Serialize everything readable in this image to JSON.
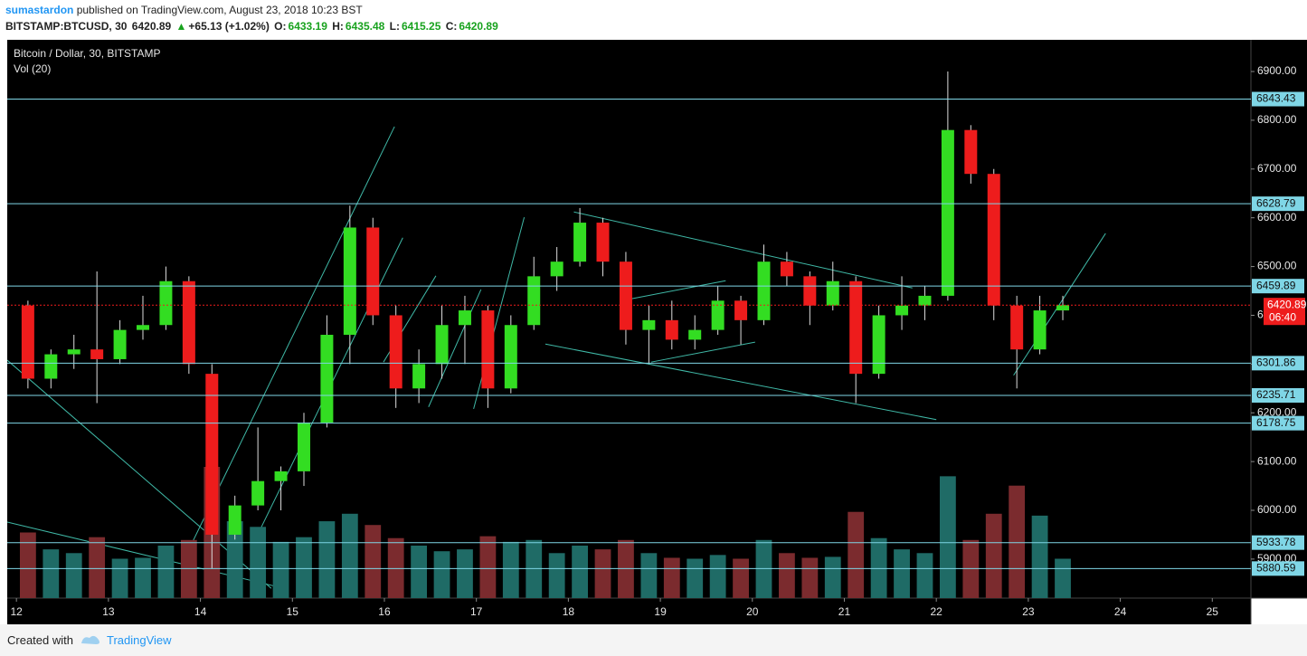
{
  "header": {
    "user": "sumastardon",
    "published": "published on TradingView.com, August 23, 2018 10:23 BST",
    "symbol": "BITSTAMP:BTCUSD, 30",
    "last": "6420.89",
    "change": "+65.13 (+1.02%)",
    "o_label": "O:",
    "o": "6433.19",
    "h_label": "H:",
    "h": "6435.48",
    "l_label": "L:",
    "l": "6415.25",
    "c_label": "C:",
    "c": "6420.89"
  },
  "footer": {
    "created": "Created with",
    "brand": "TradingView"
  },
  "chart_data": {
    "type": "candlestick",
    "title": "Bitcoin / Dollar, 30, BITSTAMP",
    "volume_label": "Vol (20)",
    "up_color": "#33dd22",
    "down_color": "#ee1c1c",
    "wick_color": "#dddddd",
    "up_volume_color": "#1f6b66",
    "down_volume_color": "#7b2b2e",
    "line_color": "#3fb8a6",
    "level_color": "#7fd6e6",
    "x": [
      12,
      12.25,
      12.5,
      12.75,
      13,
      13.25,
      13.5,
      13.75,
      14,
      14.25,
      14.5,
      14.75,
      15,
      15.25,
      15.5,
      15.75,
      16,
      16.25,
      16.5,
      16.75,
      17,
      17.25,
      17.5,
      17.75,
      18,
      18.25,
      18.5,
      18.75,
      19,
      19.25,
      19.5,
      19.75,
      20,
      20.25,
      20.5,
      20.75,
      21,
      21.25,
      21.5,
      21.75,
      22,
      22.25,
      22.5,
      22.75,
      23,
      23.25
    ],
    "open": [
      6420,
      6270,
      6320,
      6330,
      6310,
      6370,
      6380,
      6470,
      6280,
      5950,
      6010,
      6060,
      6080,
      6180,
      6360,
      6580,
      6400,
      6250,
      6300,
      6380,
      6410,
      6250,
      6380,
      6480,
      6510,
      6590,
      6510,
      6370,
      6390,
      6350,
      6370,
      6430,
      6390,
      6510,
      6480,
      6420,
      6470,
      6280,
      6400,
      6420,
      6440,
      6780,
      6690,
      6420,
      6330,
      6410
    ],
    "high": [
      6430,
      6330,
      6360,
      6490,
      6390,
      6440,
      6500,
      6480,
      6300,
      6030,
      6170,
      6090,
      6200,
      6400,
      6625,
      6600,
      6420,
      6330,
      6420,
      6440,
      6420,
      6400,
      6520,
      6540,
      6620,
      6600,
      6530,
      6420,
      6430,
      6400,
      6460,
      6440,
      6545,
      6530,
      6490,
      6510,
      6480,
      6420,
      6480,
      6460,
      6900,
      6790,
      6700,
      6440,
      6440,
      6440
    ],
    "low": [
      6250,
      6250,
      6290,
      6220,
      6300,
      6350,
      6370,
      6280,
      5880,
      5940,
      6000,
      6000,
      6050,
      6170,
      6300,
      6380,
      6210,
      6220,
      6270,
      6300,
      6210,
      6240,
      6370,
      6450,
      6500,
      6480,
      6340,
      6300,
      6330,
      6330,
      6360,
      6340,
      6380,
      6460,
      6380,
      6410,
      6220,
      6270,
      6370,
      6390,
      6430,
      6670,
      6390,
      6250,
      6320,
      6390
    ],
    "close": [
      6270,
      6320,
      6330,
      6310,
      6370,
      6380,
      6470,
      6300,
      5950,
      6010,
      6060,
      6080,
      6180,
      6360,
      6580,
      6400,
      6250,
      6300,
      6380,
      6410,
      6250,
      6380,
      6480,
      6510,
      6590,
      6510,
      6370,
      6390,
      6350,
      6370,
      6430,
      6390,
      6510,
      6480,
      6420,
      6470,
      6280,
      6400,
      6420,
      6440,
      6780,
      6690,
      6420,
      6330,
      6410,
      6420.89
    ],
    "volume": [
      700,
      520,
      480,
      650,
      420,
      430,
      560,
      620,
      1400,
      820,
      760,
      600,
      650,
      820,
      900,
      780,
      640,
      560,
      500,
      520,
      660,
      600,
      620,
      480,
      560,
      520,
      620,
      480,
      430,
      420,
      460,
      420,
      620,
      480,
      430,
      440,
      920,
      640,
      520,
      480,
      1300,
      620,
      900,
      1200,
      880,
      420
    ],
    "ylim": [
      5820,
      6965
    ],
    "xlim": [
      11.9,
      25.42
    ],
    "yticks": [
      {
        "value": 5900,
        "label": "5900.00"
      },
      {
        "value": 6000,
        "label": "6000.00"
      },
      {
        "value": 6100,
        "label": "6100.00"
      },
      {
        "value": 6200,
        "label": "6200.00"
      },
      {
        "value": 6300,
        "label": "6300.00"
      },
      {
        "value": 6400,
        "label": "6400.00"
      },
      {
        "value": 6500,
        "label": "6500.00"
      },
      {
        "value": 6600,
        "label": "6600.00"
      },
      {
        "value": 6700,
        "label": "6700.00"
      },
      {
        "value": 6800,
        "label": "6800.00"
      },
      {
        "value": 6900,
        "label": "6900.00"
      }
    ],
    "xticks": [
      12,
      13,
      14,
      15,
      16,
      17,
      18,
      19,
      20,
      21,
      22,
      23,
      24,
      25
    ],
    "levels": [
      6843.43,
      6628.79,
      6459.89,
      6301.86,
      6235.71,
      6178.75,
      5933.78,
      5880.59
    ],
    "last_price": 6420.89,
    "countdown": "06:40",
    "trendlines": [
      [
        13.87,
        5918,
        16.11,
        6787
      ],
      [
        14.64,
        5957,
        16.2,
        6559
      ],
      [
        18.06,
        6612,
        21.74,
        6456
      ],
      [
        17.75,
        6341,
        22.0,
        6186
      ],
      [
        22.84,
        6277,
        23.84,
        6568
      ],
      [
        11.9,
        6308,
        14.77,
        5840
      ],
      [
        11.9,
        5976,
        14.82,
        5844
      ],
      [
        15.99,
        6304,
        16.56,
        6481
      ],
      [
        16.48,
        6212,
        17.05,
        6453
      ],
      [
        16.97,
        6208,
        17.52,
        6601
      ],
      [
        18.69,
        6434,
        19.71,
        6471
      ],
      [
        18.9,
        6304,
        20.03,
        6345
      ]
    ]
  }
}
